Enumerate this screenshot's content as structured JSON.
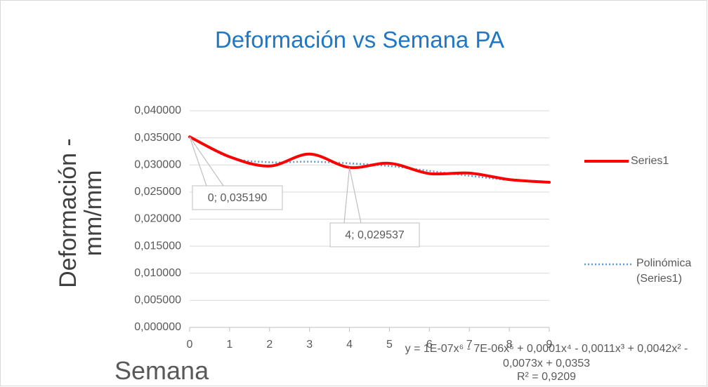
{
  "chart_data": {
    "type": "line",
    "title": "Deformación vs Semana PA",
    "x_label": "Semana",
    "y_label": "Deformación - mm/mm",
    "x": [
      0,
      1,
      2,
      3,
      4,
      5,
      6,
      7,
      8,
      9
    ],
    "series": [
      {
        "name": "Series1",
        "color": "#ff0000",
        "style": "solid",
        "values": [
          0.03519,
          0.0315,
          0.0298,
          0.032,
          0.029537,
          0.0303,
          0.0284,
          0.0285,
          0.0273,
          0.0268
        ],
        "value_labels": [
          "0; 0,035190",
          null,
          null,
          null,
          "4; 0,029537",
          null,
          null,
          null,
          null,
          null
        ]
      },
      {
        "name": "Polinómica (Series1)",
        "color": "#5b9bd5",
        "style": "dotted",
        "values": [
          0.0352,
          0.0314,
          0.0305,
          0.0306,
          0.0303,
          0.0298,
          0.0289,
          0.028,
          0.0272,
          0.0268
        ]
      }
    ],
    "trendline_equation": "y = 1E-07x⁶ - 7E-06x⁵ + 0,0001x⁴ - 0,0011x³ + 0,0042x² - 0,0073x + 0,0353",
    "r_squared": "R² = 0,9209",
    "xlim": [
      0,
      9
    ],
    "xticks": [
      0,
      1,
      2,
      3,
      4,
      5,
      6,
      7,
      8,
      9
    ],
    "ylim": [
      0,
      0.04
    ],
    "yticks": [
      {
        "value": 0,
        "label": "0,000000"
      },
      {
        "value": 0.005,
        "label": "0,005000"
      },
      {
        "value": 0.01,
        "label": "0,010000"
      },
      {
        "value": 0.015,
        "label": "0,015000"
      },
      {
        "value": 0.02,
        "label": "0,020000"
      },
      {
        "value": 0.025,
        "label": "0,025000"
      },
      {
        "value": 0.03,
        "label": "0,030000"
      },
      {
        "value": 0.035,
        "label": "0,035000"
      },
      {
        "value": 0.04,
        "label": "0,040000"
      }
    ],
    "grid": true,
    "legend": "right"
  }
}
